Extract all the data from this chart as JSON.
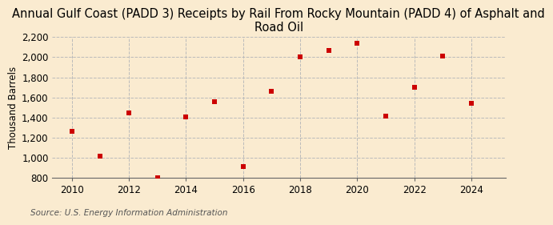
{
  "title": "Annual Gulf Coast (PADD 3) Receipts by Rail From Rocky Mountain (PADD 4) of Asphalt and\nRoad Oil",
  "ylabel": "Thousand Barrels",
  "source": "Source: U.S. Energy Information Administration",
  "years": [
    2010,
    2011,
    2012,
    2013,
    2014,
    2015,
    2016,
    2017,
    2018,
    2019,
    2020,
    2021,
    2022,
    2023,
    2024
  ],
  "values": [
    1260,
    1020,
    1450,
    800,
    1410,
    1560,
    910,
    1660,
    2000,
    2070,
    2140,
    1415,
    1700,
    2010,
    1540
  ],
  "marker_color": "#cc0000",
  "marker": "s",
  "marker_size": 4.5,
  "ylim": [
    800,
    2200
  ],
  "yticks": [
    800,
    1000,
    1200,
    1400,
    1600,
    1800,
    2000,
    2200
  ],
  "xlim": [
    2009.3,
    2025.2
  ],
  "xticks": [
    2010,
    2012,
    2014,
    2016,
    2018,
    2020,
    2022,
    2024
  ],
  "background_color": "#faebd0",
  "plot_bg_color": "#faebd0",
  "grid_color": "#bbbbbb",
  "title_fontsize": 10.5,
  "axis_fontsize": 8.5,
  "tick_fontsize": 8.5,
  "source_fontsize": 7.5
}
